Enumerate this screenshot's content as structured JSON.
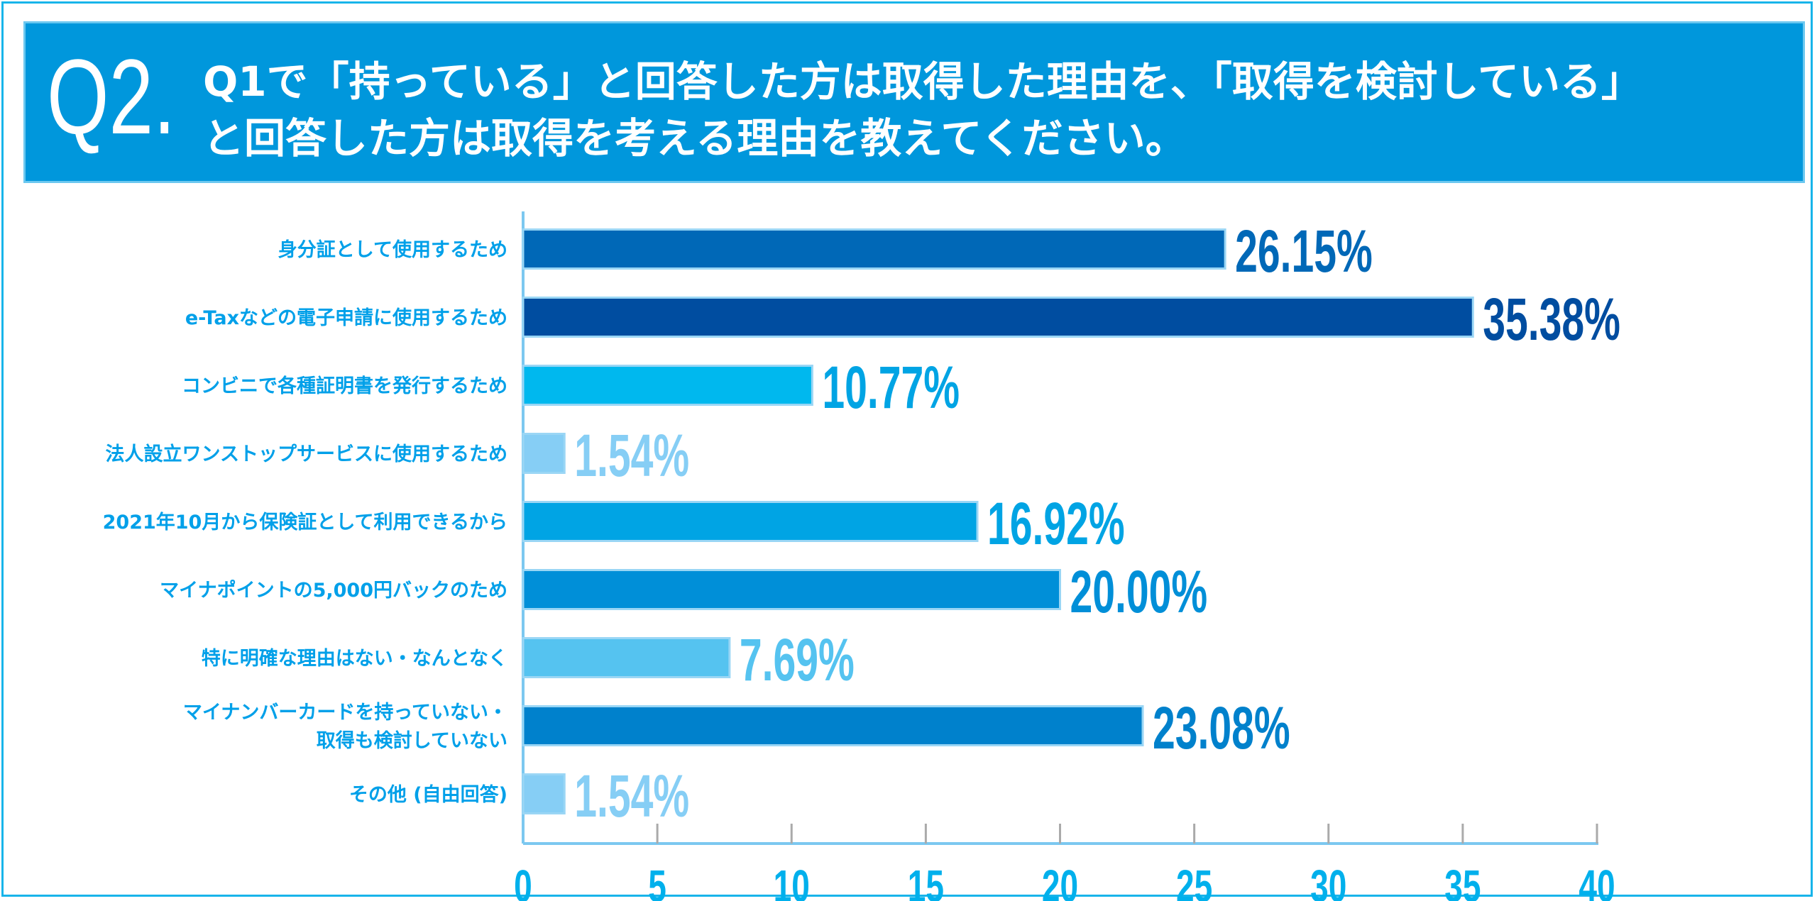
{
  "header": {
    "qnum": "Q2.",
    "line1": "Q1で「持っている」と回答した方は取得した理由を、「取得を検討している」",
    "line2": "と回答した方は取得を考える理由を教えてください。"
  },
  "chart_data": {
    "type": "bar",
    "orientation": "horizontal",
    "categories": [
      [
        "身分証として使用するため"
      ],
      [
        "e-Taxなどの電子申請に使用するため"
      ],
      [
        "コンビニで各種証明書を発行するため"
      ],
      [
        "法人設立ワンストップサービスに使用するため"
      ],
      [
        "2021年10月から保険証として利用できるから"
      ],
      [
        "マイナポイントの5,000円バックのため"
      ],
      [
        "特に明確な理由はない・なんとなく"
      ],
      [
        "マイナンバーカードを持っていない・",
        "取得も検討していない"
      ],
      [
        "その他 (自由回答)"
      ]
    ],
    "values": [
      26.15,
      35.38,
      10.77,
      1.54,
      16.92,
      20.0,
      7.69,
      23.08,
      1.54
    ],
    "value_labels": [
      "26.15%",
      "35.38%",
      "10.77%",
      "1.54%",
      "16.92%",
      "20.00%",
      "7.69%",
      "23.08%",
      "1.54%"
    ],
    "colors": [
      "#0068b7",
      "#004da0",
      "#00b8ee",
      "#86cef5",
      "#00a4e4",
      "#008fd8",
      "#55c3f0",
      "#0081cc",
      "#86cef5"
    ],
    "label_colors": [
      "#0068b7",
      "#004da0",
      "#00a4e4",
      "#86cef5",
      "#00a4e4",
      "#008fd8",
      "#55c3f0",
      "#0081cc",
      "#86cef5"
    ],
    "xlim": [
      0,
      40
    ],
    "xticks": [
      "0",
      "5",
      "10",
      "15",
      "20",
      "25",
      "30",
      "35",
      "40"
    ],
    "grid": false,
    "category_label_color": "#00a0e9"
  }
}
